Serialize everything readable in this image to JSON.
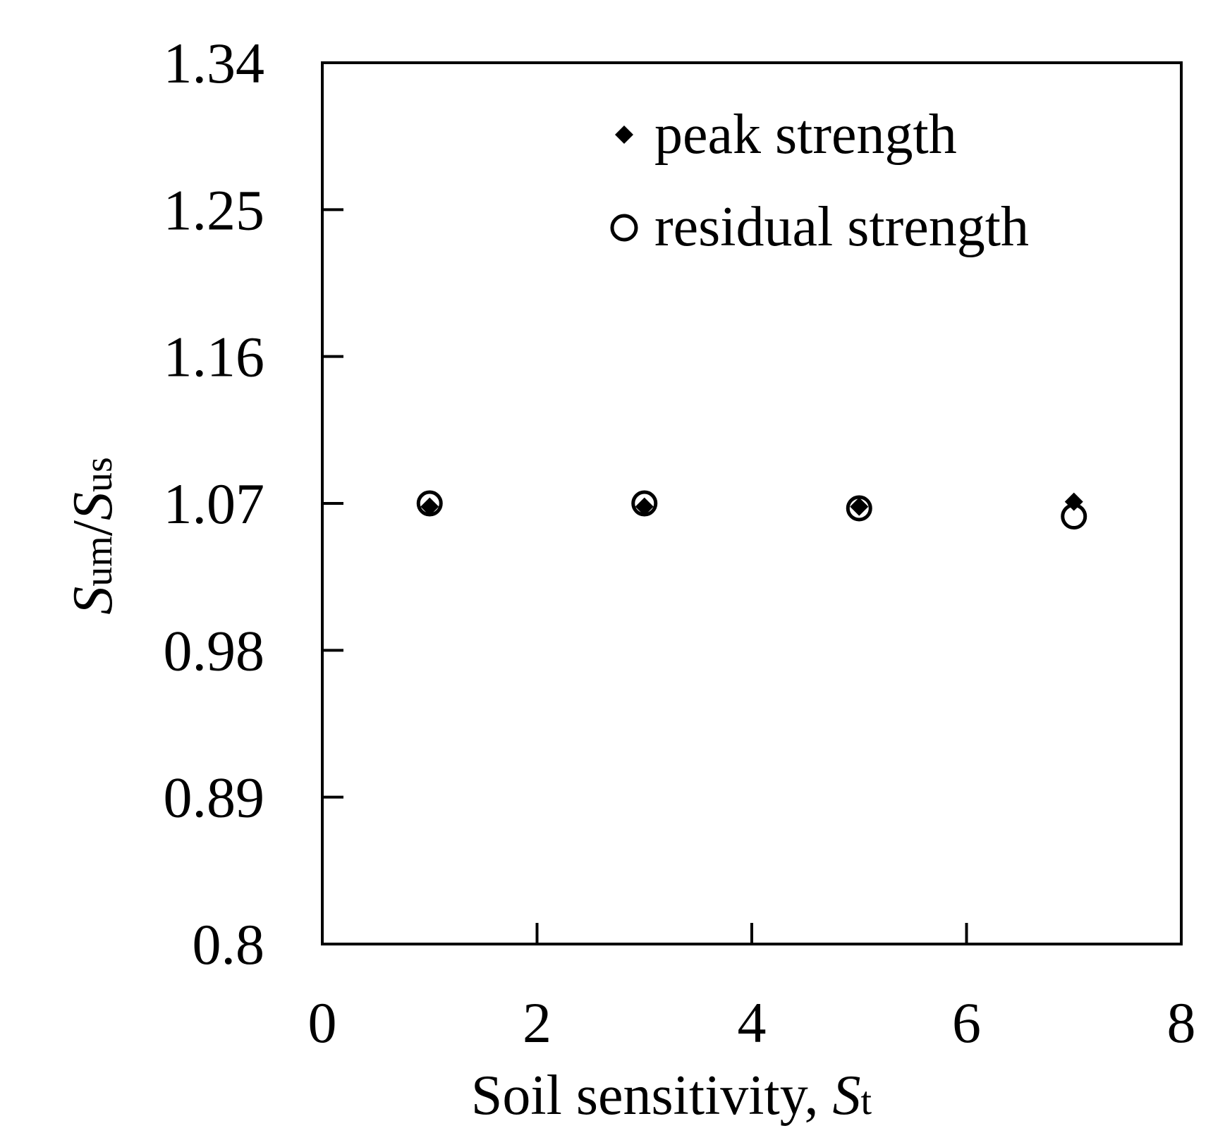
{
  "chart_data": {
    "type": "scatter",
    "title": "",
    "xlabel": "Soil sensitivity, St",
    "xlabel_parts": {
      "text": "Soil sensitivity, ",
      "sym": "S",
      "sub": "t"
    },
    "ylabel": "Sum/Sus",
    "ylabel_parts": {
      "sym1": "S",
      "sub1": "um",
      "slash": "/",
      "sym2": "S",
      "sub2": "us"
    },
    "xlim": [
      0,
      8
    ],
    "ylim": [
      0.8,
      1.34
    ],
    "x_ticks": [
      0,
      2,
      4,
      6,
      8
    ],
    "x_tick_labels": [
      "0",
      "2",
      "4",
      "6",
      "8"
    ],
    "y_ticks": [
      0.8,
      0.89,
      0.98,
      1.07,
      1.16,
      1.25,
      1.34
    ],
    "y_tick_labels": [
      "0.8",
      "0.89",
      "0.98",
      "1.07",
      "1.16",
      "1.25",
      "1.34"
    ],
    "grid": false,
    "legend_position": "top-right",
    "series": [
      {
        "name": "peak strength",
        "marker": "diamond-filled",
        "color": "#000000",
        "points": [
          {
            "x": 1,
            "y": 1.068
          },
          {
            "x": 3,
            "y": 1.068
          },
          {
            "x": 5,
            "y": 1.068
          },
          {
            "x": 7,
            "y": 1.071
          }
        ]
      },
      {
        "name": "residual strength",
        "marker": "circle-open",
        "color": "#000000",
        "points": [
          {
            "x": 1,
            "y": 1.07
          },
          {
            "x": 3,
            "y": 1.07
          },
          {
            "x": 5,
            "y": 1.067
          },
          {
            "x": 7,
            "y": 1.062
          }
        ]
      }
    ]
  }
}
